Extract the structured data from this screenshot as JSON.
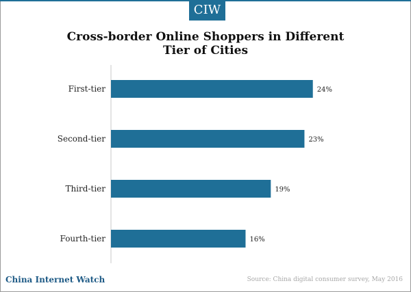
{
  "brand": {
    "logo_text": "CIW",
    "footer_name": "China Internet Watch",
    "source_note": "Source: China digital consumer survey, May 2016"
  },
  "colors": {
    "bar": "#1f6f97",
    "accent": "#1f6f97",
    "brand_text": "#1f5b86"
  },
  "chart_data": {
    "type": "bar",
    "orientation": "horizontal",
    "title": "Cross-border Online Shoppers in Different Tier of Cities",
    "title_lines": [
      "Cross-border Online Shoppers in Different",
      "Tier of Cities"
    ],
    "categories": [
      "First-tier",
      "Second-tier",
      "Third-tier",
      "Fourth-tier"
    ],
    "values": [
      24,
      23,
      19,
      16
    ],
    "value_labels": [
      "24%",
      "23%",
      "19%",
      "16%"
    ],
    "xlim": [
      0,
      25
    ],
    "grid": false,
    "legend": "none"
  }
}
